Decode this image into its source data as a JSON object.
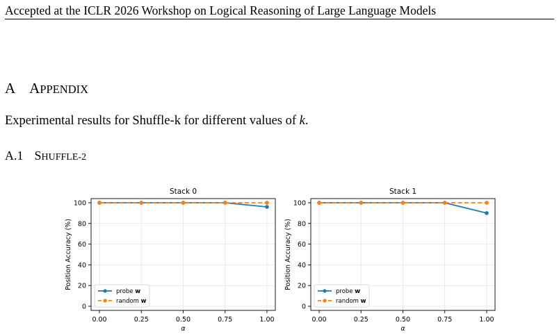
{
  "header": {
    "running_title": "Accepted at the ICLR 2026 Workshop on Logical Reasoning of Large Language Models"
  },
  "section": {
    "number": "A",
    "title_first": "A",
    "title_rest": "PPENDIX"
  },
  "intro": {
    "text": "Experimental results for Shuffle-k for different values of ",
    "var": "k",
    "end": "."
  },
  "subsection": {
    "number": "A.1",
    "title_first": "S",
    "title_rest": "HUFFLE-2"
  },
  "colors": {
    "probe": "#1f77b4",
    "random": "#ff7f0e",
    "grid": "#e5e5e5"
  },
  "chart_data": [
    {
      "type": "line",
      "title": "Stack 0",
      "xlabel": "α",
      "ylabel": "Position Accuracy (%)",
      "x": [
        0.0,
        0.25,
        0.5,
        0.75,
        1.0
      ],
      "xticks": [
        "0.00",
        "0.25",
        "0.50",
        "0.75",
        "1.00"
      ],
      "yticks": [
        "0",
        "20",
        "40",
        "60",
        "80",
        "100"
      ],
      "ylim": [
        -4,
        104
      ],
      "xlim": [
        -0.05,
        1.05
      ],
      "grid": true,
      "legend_position": "lower-left",
      "series": [
        {
          "name": "probe",
          "name_bold": "w",
          "values": [
            100,
            100,
            100,
            100,
            96
          ],
          "linestyle": "solid"
        },
        {
          "name": "random",
          "name_bold": "w",
          "values": [
            100,
            100,
            100,
            100,
            100
          ],
          "linestyle": "dashed"
        }
      ]
    },
    {
      "type": "line",
      "title": "Stack 1",
      "xlabel": "α",
      "ylabel": "Position Accuracy (%)",
      "x": [
        0.0,
        0.25,
        0.5,
        0.75,
        1.0
      ],
      "xticks": [
        "0.00",
        "0.25",
        "0.50",
        "0.75",
        "1.00"
      ],
      "yticks": [
        "0",
        "20",
        "40",
        "60",
        "80",
        "100"
      ],
      "ylim": [
        -4,
        104
      ],
      "xlim": [
        -0.05,
        1.05
      ],
      "grid": true,
      "legend_position": "lower-left",
      "series": [
        {
          "name": "probe",
          "name_bold": "w",
          "values": [
            100,
            100,
            100,
            100,
            90
          ],
          "linestyle": "solid"
        },
        {
          "name": "random",
          "name_bold": "w",
          "values": [
            100,
            100,
            100,
            100,
            100
          ],
          "linestyle": "dashed"
        }
      ]
    }
  ]
}
